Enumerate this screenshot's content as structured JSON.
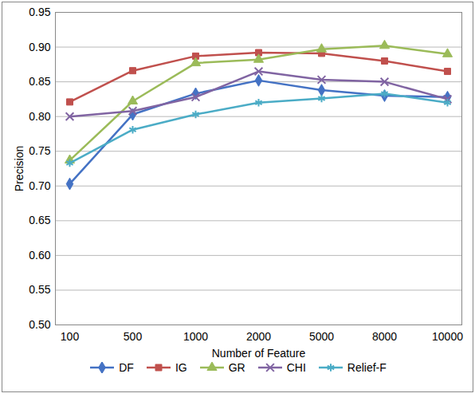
{
  "chart_data": {
    "type": "line",
    "x_label": "Number of Feature",
    "y_label": "Precision",
    "categories": [
      "100",
      "500",
      "1000",
      "2000",
      "5000",
      "8000",
      "10000"
    ],
    "series": [
      {
        "name": "DF",
        "color": "#4472c4",
        "marker": "diamond",
        "values": [
          0.703,
          0.803,
          0.833,
          0.852,
          0.838,
          0.83,
          0.828
        ]
      },
      {
        "name": "IG",
        "color": "#c0504d",
        "marker": "square",
        "values": [
          0.821,
          0.866,
          0.887,
          0.892,
          0.891,
          0.88,
          0.865
        ]
      },
      {
        "name": "GR",
        "color": "#9bbb59",
        "marker": "triangle",
        "values": [
          0.737,
          0.822,
          0.877,
          0.882,
          0.897,
          0.902,
          0.89
        ]
      },
      {
        "name": "CHI",
        "color": "#8064a2",
        "marker": "times",
        "values": [
          0.8,
          0.808,
          0.828,
          0.865,
          0.853,
          0.85,
          0.825
        ]
      },
      {
        "name": "Relief-F",
        "color": "#4bacc6",
        "marker": "asterisk",
        "values": [
          0.733,
          0.781,
          0.803,
          0.82,
          0.826,
          0.833,
          0.82
        ]
      }
    ],
    "ylim": [
      0.5,
      0.95
    ],
    "yticks": [
      {
        "value": 0.5,
        "label": "0.50"
      },
      {
        "value": 0.55,
        "label": "0.55"
      },
      {
        "value": 0.6,
        "label": "0.60"
      },
      {
        "value": 0.65,
        "label": "0.65"
      },
      {
        "value": 0.7,
        "label": "0.70"
      },
      {
        "value": 0.75,
        "label": "0.75"
      },
      {
        "value": 0.8,
        "label": "0.80"
      },
      {
        "value": 0.85,
        "label": "0.85"
      },
      {
        "value": 0.9,
        "label": "0.90"
      },
      {
        "value": 0.95,
        "label": "0.95"
      }
    ],
    "grid": true,
    "legend": "bottom"
  }
}
